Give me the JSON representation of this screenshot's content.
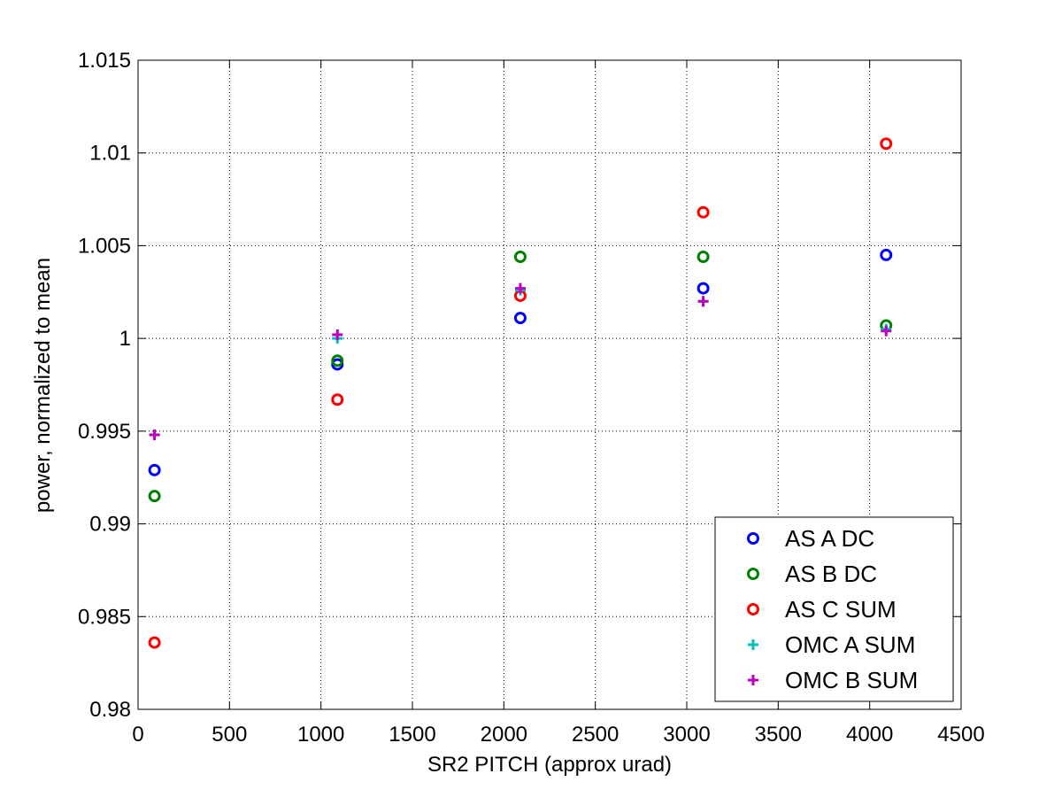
{
  "chart_data": {
    "type": "scatter",
    "title": "",
    "xlabel": "SR2 PITCH (approx urad)",
    "ylabel": "power, normalized to mean",
    "xlim": [
      0,
      4500
    ],
    "ylim": [
      0.98,
      1.015
    ],
    "xticks": [
      0,
      500,
      1000,
      1500,
      2000,
      2500,
      3000,
      3500,
      4000,
      4500
    ],
    "xtick_labels": [
      "0",
      "500",
      "1000",
      "1500",
      "2000",
      "2500",
      "3000",
      "3500",
      "4000",
      "4500"
    ],
    "yticks": [
      0.98,
      0.985,
      0.99,
      0.995,
      1.0,
      1.005,
      1.01,
      1.015
    ],
    "ytick_labels": [
      "0.98",
      "0.985",
      "0.99",
      "0.995",
      "1",
      "1.005",
      "1.01",
      "1.015"
    ],
    "grid": true,
    "legend_position": "bottom-right",
    "series": [
      {
        "name": "AS A DC",
        "marker": "circle",
        "color": "#0000ff",
        "x": [
          90,
          1090,
          2090,
          3090,
          4090
        ],
        "y": [
          0.9929,
          0.9986,
          1.0011,
          1.0027,
          1.0045
        ]
      },
      {
        "name": "AS B DC",
        "marker": "circle",
        "color": "#008000",
        "x": [
          90,
          1090,
          2090,
          3090,
          4090
        ],
        "y": [
          0.9915,
          0.9988,
          1.0044,
          1.0044,
          1.0007
        ]
      },
      {
        "name": "AS C SUM",
        "marker": "circle",
        "color": "#ff0000",
        "x": [
          90,
          1090,
          2090,
          3090,
          4090
        ],
        "y": [
          0.9836,
          0.9967,
          1.0023,
          1.0068,
          1.0105
        ]
      },
      {
        "name": "OMC A SUM",
        "marker": "plus",
        "color": "#00bfbf",
        "x": [
          90,
          1090,
          2090,
          3090,
          4090
        ],
        "y": [
          0.9948,
          1.0,
          1.0026,
          1.002,
          1.0005
        ]
      },
      {
        "name": "OMC B SUM",
        "marker": "plus",
        "color": "#bf00bf",
        "x": [
          90,
          1090,
          2090,
          3090,
          4090
        ],
        "y": [
          0.9948,
          1.0002,
          1.0027,
          1.002,
          1.0004
        ]
      }
    ]
  }
}
